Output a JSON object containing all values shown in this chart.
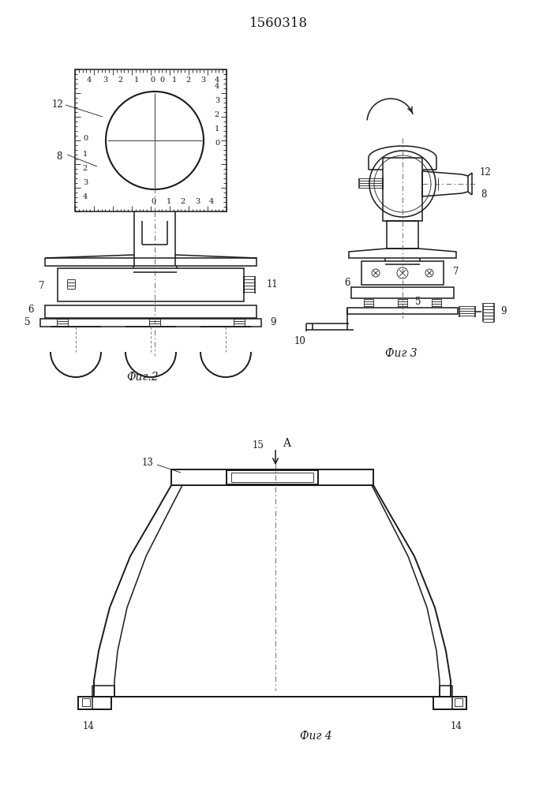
{
  "title": "1560318",
  "title_fontsize": 12,
  "bg_color": "#ffffff",
  "line_color": "#1a1a1a",
  "line_width": 1.1,
  "thin_line": 0.6,
  "label_fontsize": 8.5,
  "fig2_label": "Фиг.2",
  "fig3_label": "Фиг 3",
  "fig4_label": "Фиг 4"
}
